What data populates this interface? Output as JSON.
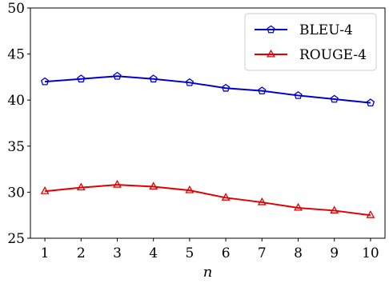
{
  "chart_data": {
    "type": "line",
    "title": "",
    "xlabel": "n",
    "ylabel": "",
    "x": [
      1,
      2,
      3,
      4,
      5,
      6,
      7,
      8,
      9,
      10
    ],
    "xlim": [
      0.6,
      10.4
    ],
    "ylim": [
      25,
      50
    ],
    "xticks": [
      "1",
      "2",
      "3",
      "4",
      "5",
      "6",
      "7",
      "8",
      "9",
      "10"
    ],
    "yticks": [
      "25",
      "30",
      "35",
      "40",
      "45",
      "50"
    ],
    "grid": false,
    "legend_position": "top-right",
    "series": [
      {
        "name": "BLEU-4",
        "color": "#0000cc",
        "marker": "pentagon",
        "values": [
          42.0,
          42.3,
          42.6,
          42.3,
          41.9,
          41.3,
          41.0,
          40.5,
          40.1,
          39.7
        ]
      },
      {
        "name": "ROUGE-4",
        "color": "#e00000",
        "marker": "triangle",
        "values": [
          30.1,
          30.5,
          30.8,
          30.6,
          30.2,
          29.4,
          28.9,
          28.3,
          28.0,
          27.5
        ]
      }
    ]
  }
}
